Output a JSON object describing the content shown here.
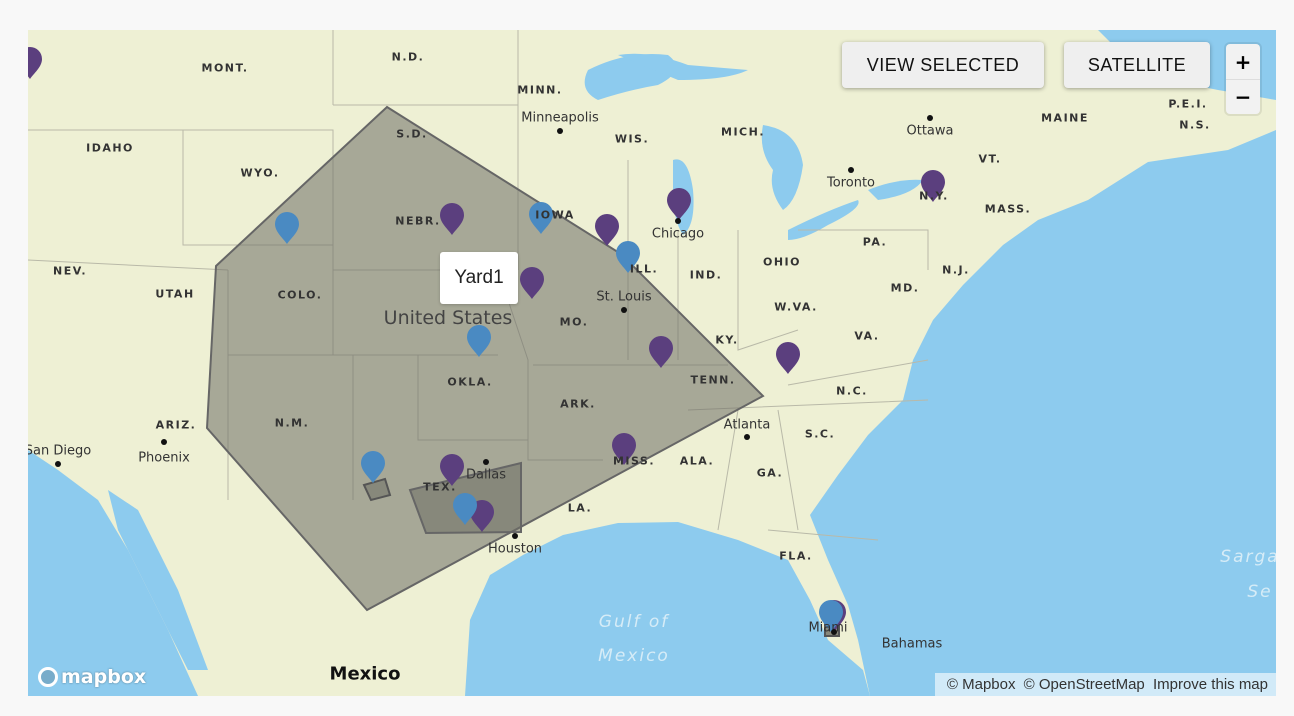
{
  "controls": {
    "view_selected": "VIEW SELECTED",
    "satellite": "SATELLITE",
    "zoom_in": "+",
    "zoom_out": "−"
  },
  "tooltip": "Yard1",
  "colors": {
    "land": "#eef0d4",
    "water": "#8dcbee",
    "area_fill": "#7a7a70",
    "marker_purple": "#5b3f7e",
    "marker_blue": "#4a8ac2"
  },
  "labels": {
    "states": [
      "MONT.",
      "N.D.",
      "MINN.",
      "WIS.",
      "MICH.",
      "S.D.",
      "IDAHO",
      "WYO.",
      "NEBR.",
      "IOWA",
      "NEV.",
      "UTAH",
      "COLO.",
      "ILL.",
      "IND.",
      "OHIO",
      "PA.",
      "N.J.",
      "N.Y.",
      "MASS.",
      "VT.",
      "MAINE",
      "N.S.",
      "MO.",
      "KY.",
      "W.VA.",
      "VA.",
      "MD.",
      "OKLA.",
      "TENN.",
      "N.C.",
      "ARK.",
      "ARIZ.",
      "N.M.",
      "S.C.",
      "MISS.",
      "ALA.",
      "GA.",
      "TEX.",
      "LA.",
      "FLA.",
      "P.E.I."
    ],
    "cities": [
      "Minneapolis",
      "Ottawa",
      "Toronto",
      "Chicago",
      "St. Louis",
      "Atlanta",
      "Phoenix",
      "San Diego",
      "Dallas",
      "Houston",
      "Miami"
    ],
    "country_us": "United States",
    "country_mexico": "Mexico",
    "bahamas": "Bahamas",
    "gulf": [
      "Gulf of",
      "Mexico"
    ],
    "sargasso": [
      "Sarga",
      "Se"
    ]
  },
  "markers": [
    "purple",
    "purple",
    "purple",
    "purple",
    "purple",
    "purple",
    "purple",
    "purple",
    "purple",
    "purple",
    "purple",
    "purple",
    "blue",
    "blue",
    "blue",
    "blue",
    "blue",
    "blue",
    "blue"
  ],
  "attribution": {
    "mapbox": "© Mapbox",
    "osm": "© OpenStreetMap",
    "improve": "Improve this map"
  },
  "logo": "mapbox"
}
